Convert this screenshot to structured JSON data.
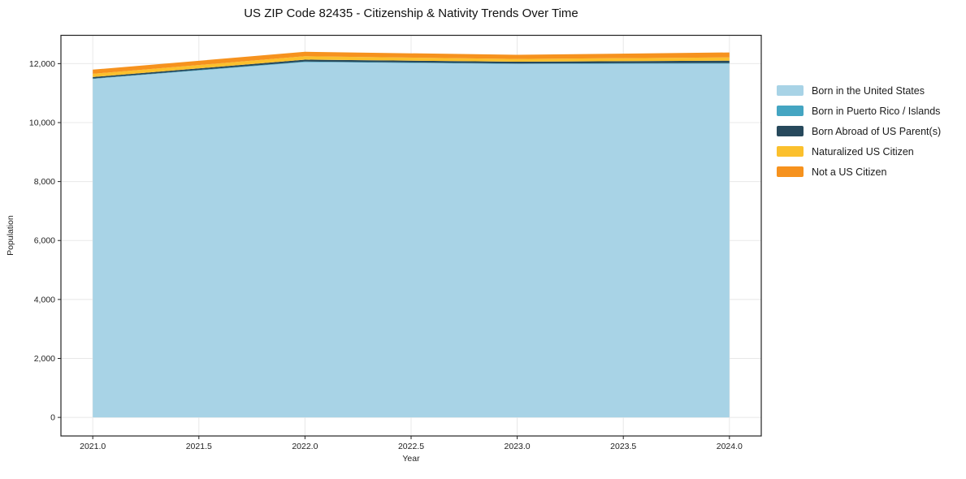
{
  "chart_data": {
    "type": "area",
    "stacked": true,
    "title": "US ZIP Code 82435 - Citizenship & Nativity Trends Over Time",
    "xlabel": "Year",
    "ylabel": "Population",
    "x": [
      2021,
      2022,
      2023,
      2024
    ],
    "series": [
      {
        "name": "Born in the United States",
        "color": "#a8d3e6",
        "values": [
          11480,
          12050,
          11990,
          12000
        ]
      },
      {
        "name": "Born in Puerto Rico / Islands",
        "color": "#44a5c2",
        "values": [
          15,
          20,
          15,
          20
        ]
      },
      {
        "name": "Born Abroad of US Parent(s)",
        "color": "#27495c",
        "values": [
          50,
          65,
          60,
          80
        ]
      },
      {
        "name": "Naturalized US Citizen",
        "color": "#fbc02d",
        "values": [
          110,
          115,
          95,
          110
        ]
      },
      {
        "name": "Not a US Citizen",
        "color": "#f6921e",
        "values": [
          140,
          150,
          140,
          170
        ]
      }
    ],
    "xlim": [
      2020.85,
      2024.15
    ],
    "ylim": [
      -630,
      12960
    ],
    "xticks": {
      "values": [
        2021.0,
        2021.5,
        2022.0,
        2022.5,
        2023.0,
        2023.5,
        2024.0
      ],
      "labels": [
        "2021.0",
        "2021.5",
        "2022.0",
        "2022.5",
        "2023.0",
        "2023.5",
        "2024.0"
      ]
    },
    "yticks": {
      "values": [
        0,
        2000,
        4000,
        6000,
        8000,
        10000,
        12000
      ],
      "labels": [
        "0",
        "2,000",
        "4,000",
        "6,000",
        "8,000",
        "10,000",
        "12,000"
      ]
    },
    "grid": true,
    "legend_position": "right"
  }
}
